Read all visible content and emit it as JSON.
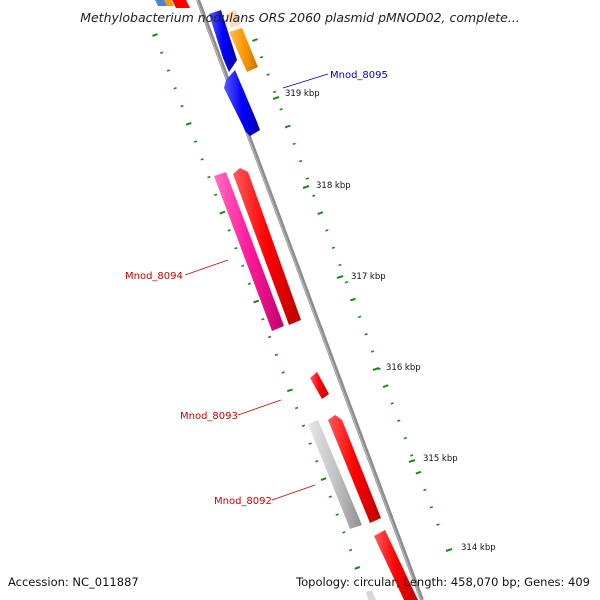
{
  "title": "Methylobacterium nodulans ORS 2060 plasmid pMNOD02, complete...",
  "footer": {
    "accession": "Accession: NC_011887",
    "summary": "Topology: circular; Length: 458,070 bp; Genes: 409"
  },
  "ticks": [
    "319 kbp",
    "318 kbp",
    "317 kbp",
    "316 kbp",
    "315 kbp",
    "314 kbp"
  ],
  "genes": [
    {
      "label": "Mnod_8095",
      "color": "#0000cc"
    },
    {
      "label": "Mnod_8094",
      "color": "#cc0000"
    },
    {
      "label": "Mnod_8093",
      "color": "#cc0000"
    },
    {
      "label": "Mnod_8092",
      "color": "#cc0000"
    }
  ],
  "colors": {
    "backbone": "#8c8c8c",
    "tick_green": "#1a8a1a",
    "red": "#ff0000",
    "blue": "#0000ff",
    "orange": "#ff9900",
    "pink": "#ff1a99",
    "gray_gene": "#c4c4c4"
  }
}
